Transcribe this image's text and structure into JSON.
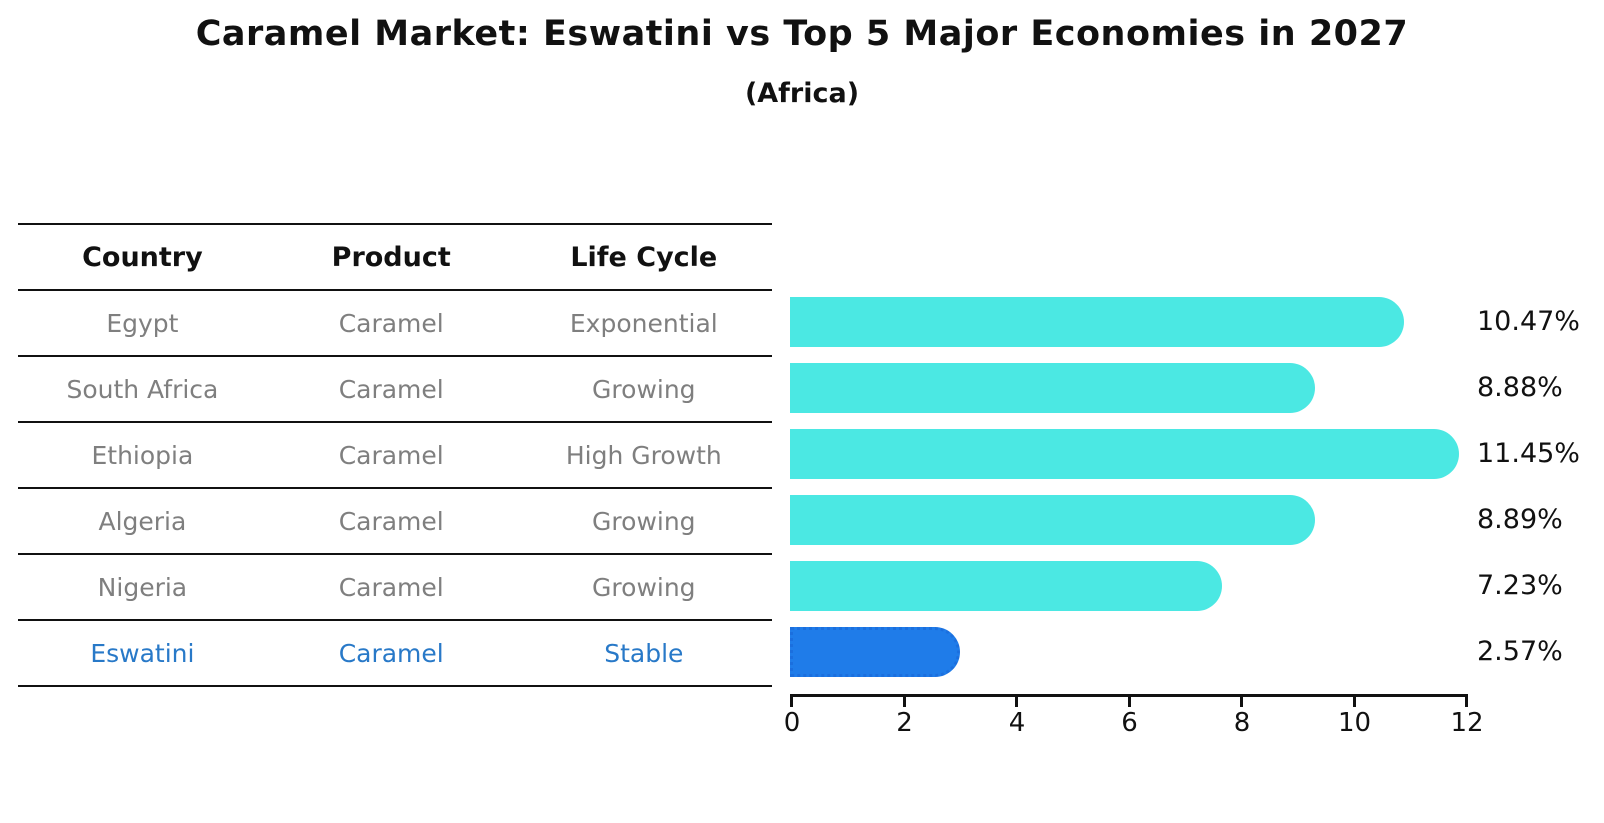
{
  "title": "Caramel Market: Eswatini vs Top 5 Major Economies in 2027",
  "subtitle": "(Africa)",
  "table": {
    "headers": [
      "Country",
      "Product",
      "Life Cycle"
    ],
    "rows": [
      {
        "country": "Egypt",
        "product": "Caramel",
        "life_cycle": "Exponential",
        "highlight": false
      },
      {
        "country": "South Africa",
        "product": "Caramel",
        "life_cycle": "Growing",
        "highlight": false
      },
      {
        "country": "Ethiopia",
        "product": "Caramel",
        "life_cycle": "High Growth",
        "highlight": false
      },
      {
        "country": "Algeria",
        "product": "Caramel",
        "life_cycle": "Growing",
        "highlight": false
      },
      {
        "country": "Nigeria",
        "product": "Caramel",
        "life_cycle": "Growing",
        "highlight": false
      },
      {
        "country": "Eswatini",
        "product": "Caramel",
        "life_cycle": "Stable",
        "highlight": true
      }
    ]
  },
  "chart_data": {
    "type": "bar",
    "orientation": "horizontal",
    "categories": [
      "Egypt",
      "South Africa",
      "Ethiopia",
      "Algeria",
      "Nigeria",
      "Eswatini"
    ],
    "values": [
      10.47,
      8.88,
      11.45,
      8.89,
      7.23,
      2.57
    ],
    "value_labels": [
      "10.47%",
      "8.88%",
      "11.45%",
      "8.89%",
      "7.23%",
      "2.57%"
    ],
    "highlight_index": 5,
    "xlabel": "",
    "ylabel": "",
    "xlim": [
      0,
      12
    ],
    "xticks": [
      0,
      2,
      4,
      6,
      8,
      10,
      12
    ],
    "grid": false,
    "legend": null,
    "bar_color": "#4BE8E3",
    "highlight_bar_color": "#1F7CE9",
    "highlight_text_color": "#2879C8"
  }
}
